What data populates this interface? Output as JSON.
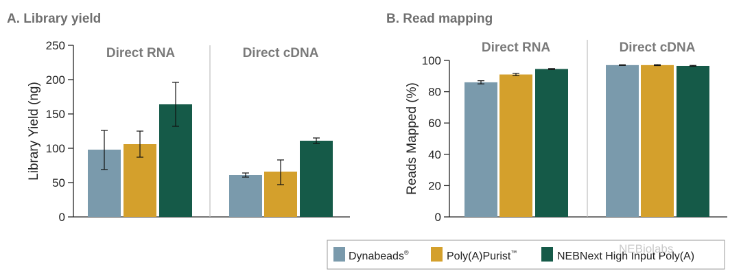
{
  "watermark": "NEBiolabs",
  "chart_data": [
    {
      "type": "bar",
      "title": "A. Library yield",
      "ylabel": "Library Yield (ng)",
      "xlabel": "",
      "ylim": [
        0,
        250
      ],
      "yticks": [
        0,
        50,
        100,
        150,
        200,
        250
      ],
      "groups": [
        "Direct RNA",
        "Direct cDNA"
      ],
      "series": [
        {
          "name": "Dynabeads",
          "values": [
            98,
            61
          ],
          "err_low": [
            69,
            58
          ],
          "err_high": [
            126,
            64
          ]
        },
        {
          "name": "Poly(A)Purist",
          "values": [
            106,
            66
          ],
          "err_low": [
            87,
            47
          ],
          "err_high": [
            125,
            83
          ]
        },
        {
          "name": "NEBNext High Input Poly(A)",
          "values": [
            164,
            111
          ],
          "err_low": [
            132,
            107
          ],
          "err_high": [
            196,
            115
          ]
        }
      ]
    },
    {
      "type": "bar",
      "title": "B. Read mapping",
      "ylabel": "Reads Mapped (%)",
      "xlabel": "",
      "ylim": [
        0,
        100
      ],
      "yticks": [
        0,
        20,
        40,
        60,
        80,
        100
      ],
      "groups": [
        "Direct RNA",
        "Direct cDNA"
      ],
      "series": [
        {
          "name": "Dynabeads",
          "values": [
            86,
            97
          ],
          "err_low": [
            85,
            96.8
          ],
          "err_high": [
            87,
            97.2
          ]
        },
        {
          "name": "Poly(A)Purist",
          "values": [
            91,
            97
          ],
          "err_low": [
            90.3,
            96.7
          ],
          "err_high": [
            91.7,
            97.3
          ]
        },
        {
          "name": "NEBNext High Input Poly(A)",
          "values": [
            94.5,
            96.5
          ],
          "err_low": [
            94.2,
            96.2
          ],
          "err_high": [
            94.8,
            96.8
          ]
        }
      ]
    }
  ],
  "legend": {
    "items": [
      {
        "label": "Dynabeads",
        "mark": "®",
        "color": "#7a9aac"
      },
      {
        "label": "Poly(A)Purist",
        "mark": "™",
        "color": "#d4a02c"
      },
      {
        "label": "NEBNext",
        "extra": " High Input Poly(A)",
        "mark": "",
        "color": "#155a48"
      }
    ]
  }
}
